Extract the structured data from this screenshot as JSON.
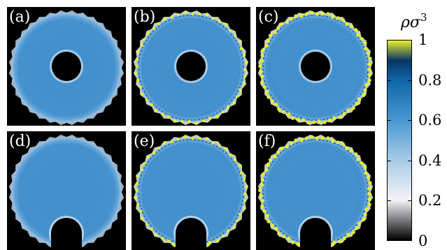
{
  "chart_data": {
    "type": "heatmap",
    "colorbar": {
      "title_symbol": "ρσ",
      "title_exponent": "3",
      "range": [
        0,
        1
      ],
      "ticks": [
        0,
        0.2,
        0.4,
        0.6,
        0.8,
        1
      ],
      "tick_labels": [
        "0",
        "0.2",
        "0.4",
        "0.6",
        "0.8",
        "1"
      ],
      "colors": {
        "0": "#000000",
        "0.2": "#f6f2f7",
        "0.4": "#a9cbe6",
        "0.6": "#4a98d1",
        "0.8": "#0f66a8",
        "0.9": "#073663",
        "1": "#e8ee2e"
      }
    },
    "panels": [
      {
        "label": "(a)",
        "row": 1,
        "obstacle": "center",
        "interior_density": 0.65,
        "edge_layering": "weak"
      },
      {
        "label": "(b)",
        "row": 1,
        "obstacle": "center",
        "interior_density": 0.65,
        "edge_layering": "strong"
      },
      {
        "label": "(c)",
        "row": 1,
        "obstacle": "center",
        "interior_density": 0.65,
        "edge_layering": "strongest"
      },
      {
        "label": "(d)",
        "row": 2,
        "obstacle": "bottom",
        "interior_density": 0.65,
        "edge_layering": "weak"
      },
      {
        "label": "(e)",
        "row": 2,
        "obstacle": "bottom",
        "interior_density": 0.65,
        "edge_layering": "strong"
      },
      {
        "label": "(f)",
        "row": 2,
        "obstacle": "bottom",
        "interior_density": 0.65,
        "edge_layering": "strongest"
      }
    ]
  }
}
